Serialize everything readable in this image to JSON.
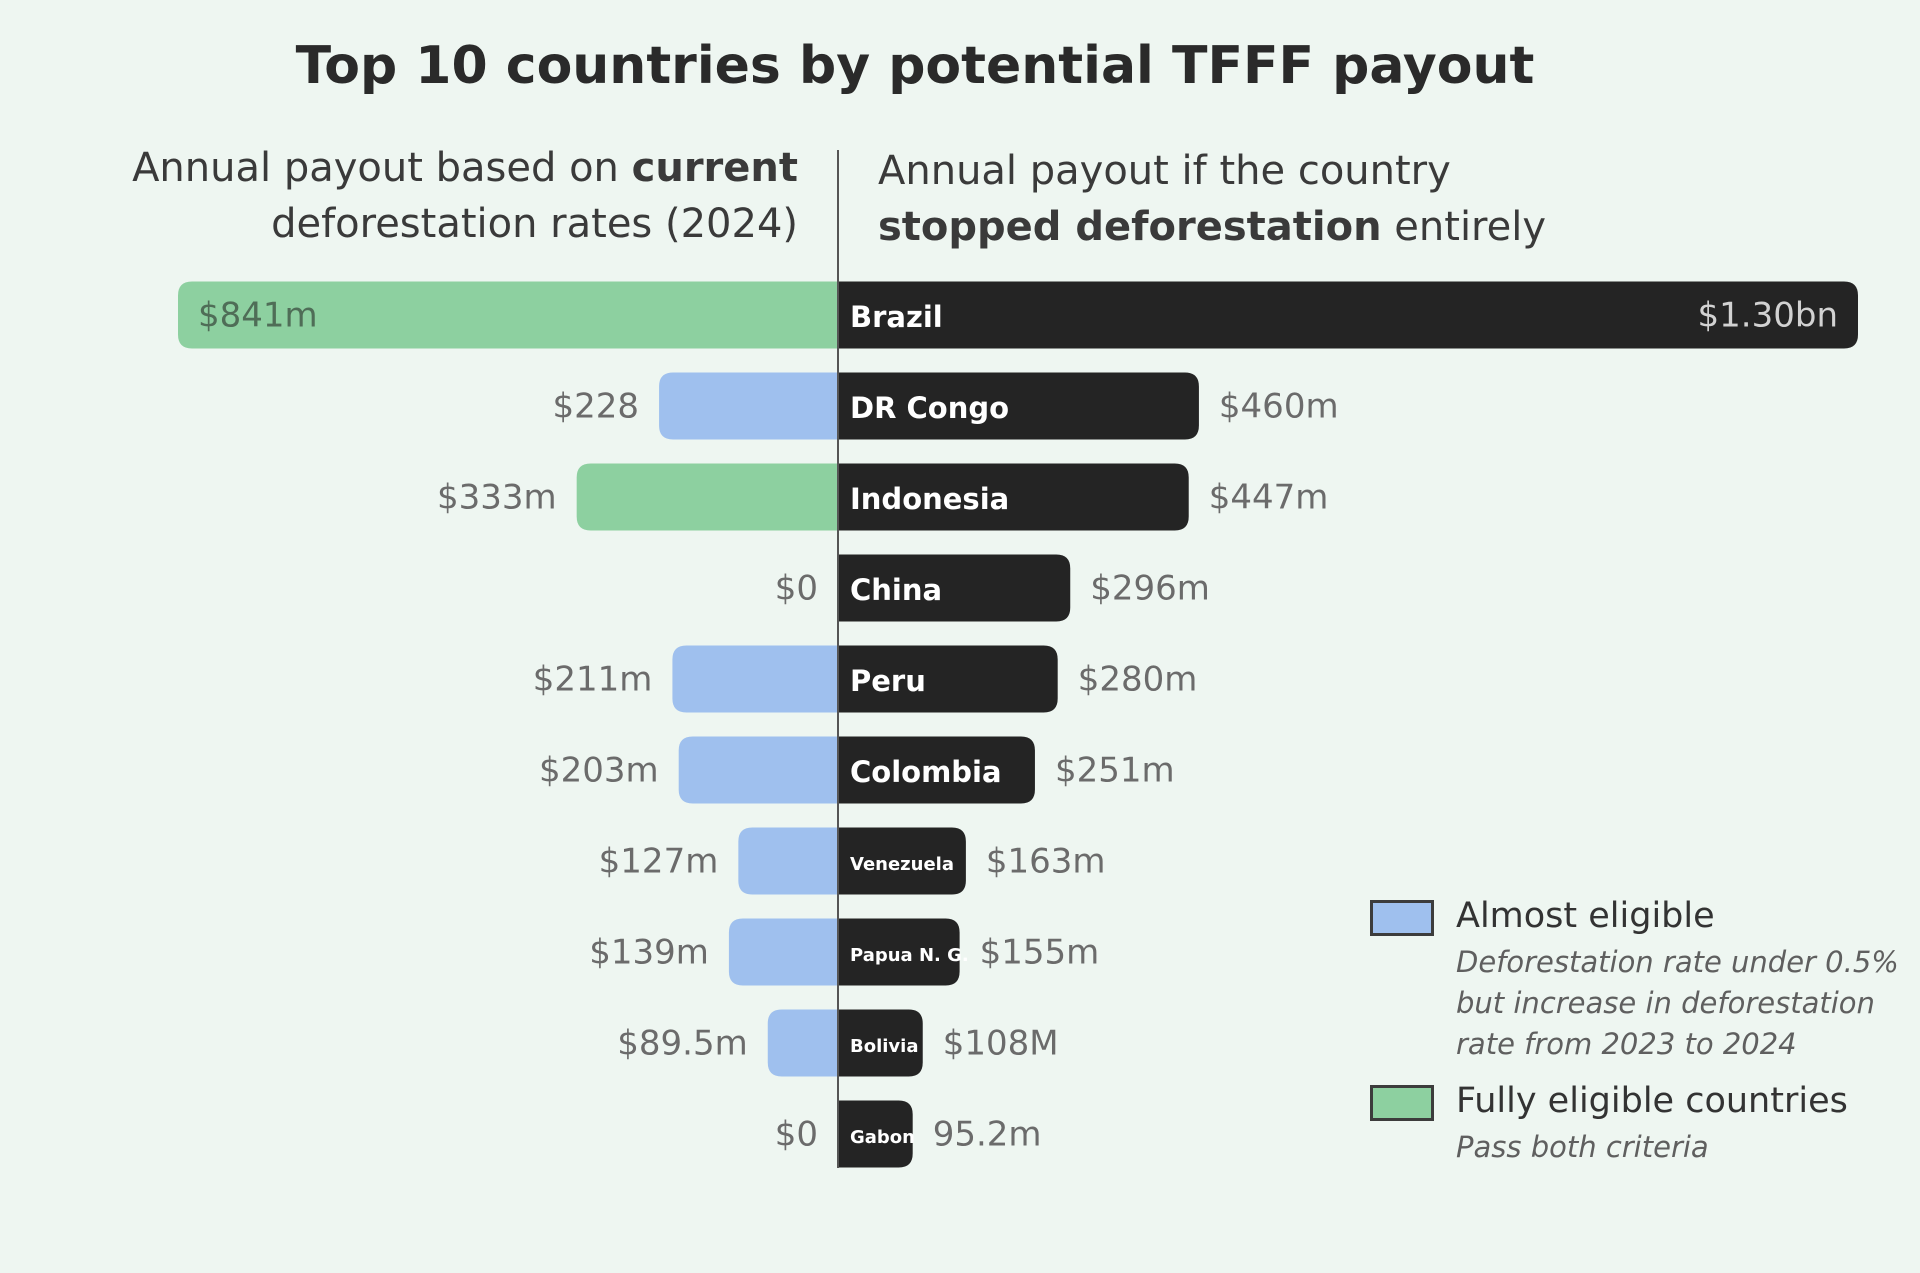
{
  "chart_data": {
    "type": "bar",
    "title": "Top 10 countries by potential TFFF payout",
    "left_heading": {
      "pre": "Annual payout based on ",
      "bold": "current",
      "post": "deforestation rates (2024)"
    },
    "right_heading": {
      "pre": "Annual payout if the country",
      "bold": "stopped deforestation",
      "post": " entirely"
    },
    "categories": [
      "Brazil",
      "DR Congo",
      "Indonesia",
      "China",
      "Peru",
      "Colombia",
      "Venezuela",
      "Papua N. G.",
      "Bolivia",
      "Gabon"
    ],
    "series": [
      {
        "key": "current",
        "values": [
          841,
          228,
          333,
          0,
          211,
          203,
          127,
          139,
          89.5,
          0
        ],
        "labels": [
          "$841m",
          "$228",
          "$333m",
          "$0",
          "$211m",
          "$203m",
          "$127m",
          "$139m",
          "$89.5m",
          "$0"
        ],
        "status": [
          "fully",
          "almost",
          "fully",
          "none",
          "almost",
          "almost",
          "almost",
          "almost",
          "almost",
          "none"
        ]
      },
      {
        "key": "stopped",
        "values": [
          1300,
          460,
          447,
          296,
          280,
          251,
          163,
          155,
          108,
          95.2
        ],
        "labels": [
          "$1.30bn",
          "$460m",
          "$447m",
          "$296m",
          "$280m",
          "$251m",
          "$163m",
          "$155m",
          "$108M",
          "95.2m"
        ]
      }
    ],
    "unit": "millions USD",
    "legend": [
      {
        "key": "almost",
        "label": "Almost eligible",
        "note": [
          "Deforestation rate under 0.5%",
          "but increase in deforestation",
          "rate from 2023 to 2024"
        ],
        "color": "#9fc0ee"
      },
      {
        "key": "fully",
        "label": "Fully eligible countries",
        "note": [
          "Pass both criteria"
        ],
        "color": "#8dd0a0"
      }
    ],
    "legend_position": "bottom-right",
    "colors": {
      "right_bar": "#242424",
      "axis": "#555555",
      "value_text": "#6b6b6b",
      "inside_value_left": "#4f6d57",
      "inside_value_right": "#d2d2d2"
    }
  }
}
